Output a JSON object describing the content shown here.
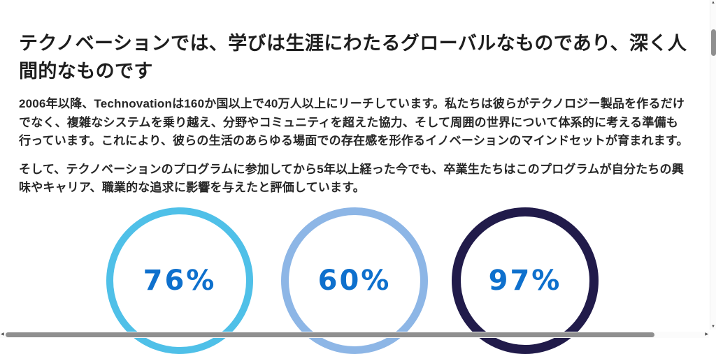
{
  "content": {
    "heading": "テクノベーションでは、学びは生涯にわたるグローバルなものであり、深く人間的なものです",
    "paragraph1": "2006年以降、Technovationは160か国以上で40万人以上にリーチしています。私たちは彼らがテクノロジー製品を作るだけでなく、複雑なシステムを乗り越え、分野やコミュニティを超えた協力、そして周囲の世界について体系的に考える準備も行っています。これにより、彼らの生活のあらゆる場面での存在感を形作るイノベーションのマインドセットが育まれます。",
    "paragraph2": "そして、テクノベーションのプログラムに参加してから5年以上経った今でも、卒業生たちはこのプログラムが自分たちの興味やキャリア、職業的な追求に影響を与えたと評価しています。"
  },
  "stats": [
    {
      "label": "76%",
      "ring_color": "#4fc0e8"
    },
    {
      "label": "60%",
      "ring_color": "#8db6e6"
    },
    {
      "label": "97%",
      "ring_color": "#211b4a"
    }
  ],
  "colors": {
    "stat_value_text": "#0e70cd",
    "heading_text": "#1d1d1d",
    "body_text": "#262626",
    "background": "#ffffff",
    "scrollbar_thumb": "#8f8f8f"
  },
  "scrollbar": {
    "up_glyph": "▲",
    "down_glyph": "▼",
    "left_glyph": "◀",
    "right_glyph": "▶"
  }
}
